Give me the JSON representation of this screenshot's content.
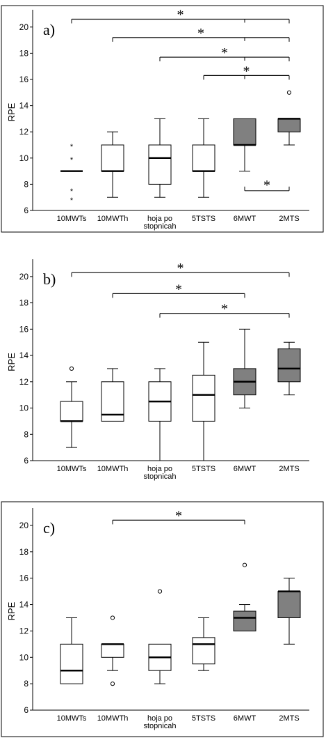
{
  "chart_data": [
    {
      "type": "box",
      "panel_label": "a)",
      "ylabel": "RPE",
      "ylim": [
        6,
        21
      ],
      "yticks": [
        6,
        8,
        10,
        12,
        14,
        16,
        18,
        20
      ],
      "categories": [
        "10MWTs",
        "10MWTh",
        "hoja po stopnicah",
        "5TSTS",
        "6MWT",
        "2MTS"
      ],
      "category_lines": [
        [
          "10MWTs"
        ],
        [
          "10MWTh"
        ],
        [
          "hoja po",
          "stopnicah"
        ],
        [
          "5TSTS"
        ],
        [
          "6MWT"
        ],
        [
          "2MTS"
        ]
      ],
      "boxes": [
        {
          "min": 9,
          "q1": 9,
          "median": 9,
          "q3": 9,
          "max": 9,
          "fill": "#ffffff"
        },
        {
          "min": 7,
          "q1": 9,
          "median": 9,
          "q3": 11,
          "max": 12,
          "fill": "#ffffff"
        },
        {
          "min": 7,
          "q1": 8,
          "median": 10,
          "q3": 11,
          "max": 13,
          "fill": "#ffffff"
        },
        {
          "min": 7,
          "q1": 9,
          "median": 9,
          "q3": 11,
          "max": 13,
          "fill": "#ffffff"
        },
        {
          "min": 9,
          "q1": 11,
          "median": 11,
          "q3": 13,
          "max": 13,
          "fill": "#808080"
        },
        {
          "min": 11,
          "q1": 12,
          "median": 13,
          "q3": 13,
          "max": 13,
          "fill": "#808080"
        }
      ],
      "outliers": [
        {
          "category": 0,
          "value": 11,
          "marker": "*"
        },
        {
          "category": 0,
          "value": 10,
          "marker": "*"
        },
        {
          "category": 0,
          "value": 7.6,
          "marker": "*"
        },
        {
          "category": 0,
          "value": 6.9,
          "marker": "*"
        },
        {
          "category": 5,
          "value": 15,
          "marker": "o"
        }
      ],
      "significance": [
        {
          "from": 0,
          "to": 5,
          "y": 20.6,
          "label": "*"
        },
        {
          "from": 1,
          "to": 5,
          "y": 19.2,
          "label": "*"
        },
        {
          "from": 2,
          "to": 5,
          "y": 17.7,
          "label": "*"
        },
        {
          "from": 3,
          "to": 5,
          "y": 16.3,
          "label": "*"
        },
        {
          "from": 4,
          "to": 5,
          "y": 7.5,
          "label": "*",
          "below": true
        }
      ],
      "significance_ticks_at": [
        4
      ]
    },
    {
      "type": "box",
      "panel_label": "b)",
      "ylabel": "RPE",
      "ylim": [
        6,
        21
      ],
      "yticks": [
        6,
        8,
        10,
        12,
        14,
        16,
        18,
        20
      ],
      "categories": [
        "10MWTs",
        "10MWTh",
        "hoja po stopnicah",
        "5TSTS",
        "6MWT",
        "2MTS"
      ],
      "category_lines": [
        [
          "10MWTs"
        ],
        [
          "10MWTh"
        ],
        [
          "hoja po",
          "stopnicah"
        ],
        [
          "5TSTS"
        ],
        [
          "6MWT"
        ],
        [
          "2MTS"
        ]
      ],
      "boxes": [
        {
          "min": 7,
          "q1": 9,
          "median": 9,
          "q3": 10.5,
          "max": 12,
          "fill": "#ffffff"
        },
        {
          "min": 9,
          "q1": 9,
          "median": 9.5,
          "q3": 12,
          "max": 13,
          "fill": "#ffffff"
        },
        {
          "min": 6,
          "q1": 9,
          "median": 10.5,
          "q3": 12,
          "max": 13,
          "fill": "#ffffff"
        },
        {
          "min": 6,
          "q1": 9,
          "median": 11,
          "q3": 12.5,
          "max": 15,
          "fill": "#ffffff"
        },
        {
          "min": 10,
          "q1": 11,
          "median": 12,
          "q3": 13,
          "max": 16,
          "fill": "#808080"
        },
        {
          "min": 11,
          "q1": 12,
          "median": 13,
          "q3": 14.5,
          "max": 15,
          "fill": "#808080"
        }
      ],
      "outliers": [
        {
          "category": 0,
          "value": 13,
          "marker": "o"
        }
      ],
      "significance": [
        {
          "from": 0,
          "to": 5,
          "y": 20.3,
          "label": "*"
        },
        {
          "from": 1,
          "to": 4,
          "y": 18.7,
          "label": "*"
        },
        {
          "from": 2,
          "to": 5,
          "y": 17.2,
          "label": "*"
        }
      ],
      "significance_ticks_at": []
    },
    {
      "type": "box",
      "panel_label": "c)",
      "ylabel": "RPE",
      "ylim": [
        6,
        21
      ],
      "yticks": [
        6,
        8,
        10,
        12,
        14,
        16,
        18,
        20
      ],
      "categories": [
        "10MWTs",
        "10MWTh",
        "hoja po stopnicah",
        "5TSTS",
        "6MWT",
        "2MTS"
      ],
      "category_lines": [
        [
          "10MWTs"
        ],
        [
          "10MWTh"
        ],
        [
          "hoja po",
          "stopnicah"
        ],
        [
          "5TSTS"
        ],
        [
          "6MWT"
        ],
        [
          "2MTS"
        ]
      ],
      "boxes": [
        {
          "min": 8,
          "q1": 8,
          "median": 9,
          "q3": 11,
          "max": 13,
          "fill": "#ffffff"
        },
        {
          "min": 9,
          "q1": 10,
          "median": 11,
          "q3": 11,
          "max": 11,
          "fill": "#ffffff"
        },
        {
          "min": 8,
          "q1": 9,
          "median": 10,
          "q3": 11,
          "max": 11,
          "fill": "#ffffff"
        },
        {
          "min": 9,
          "q1": 9.5,
          "median": 11,
          "q3": 11.5,
          "max": 13,
          "fill": "#ffffff"
        },
        {
          "min": 12,
          "q1": 12,
          "median": 13,
          "q3": 13.5,
          "max": 14,
          "fill": "#808080"
        },
        {
          "min": 11,
          "q1": 13,
          "median": 15,
          "q3": 15,
          "max": 16,
          "fill": "#808080"
        }
      ],
      "outliers": [
        {
          "category": 1,
          "value": 13,
          "marker": "o"
        },
        {
          "category": 1,
          "value": 8,
          "marker": "o"
        },
        {
          "category": 2,
          "value": 15,
          "marker": "o"
        },
        {
          "category": 4,
          "value": 17,
          "marker": "o"
        }
      ],
      "significance": [
        {
          "from": 1,
          "to": 4,
          "y": 20.4,
          "label": "*"
        }
      ],
      "significance_ticks_at": []
    }
  ]
}
